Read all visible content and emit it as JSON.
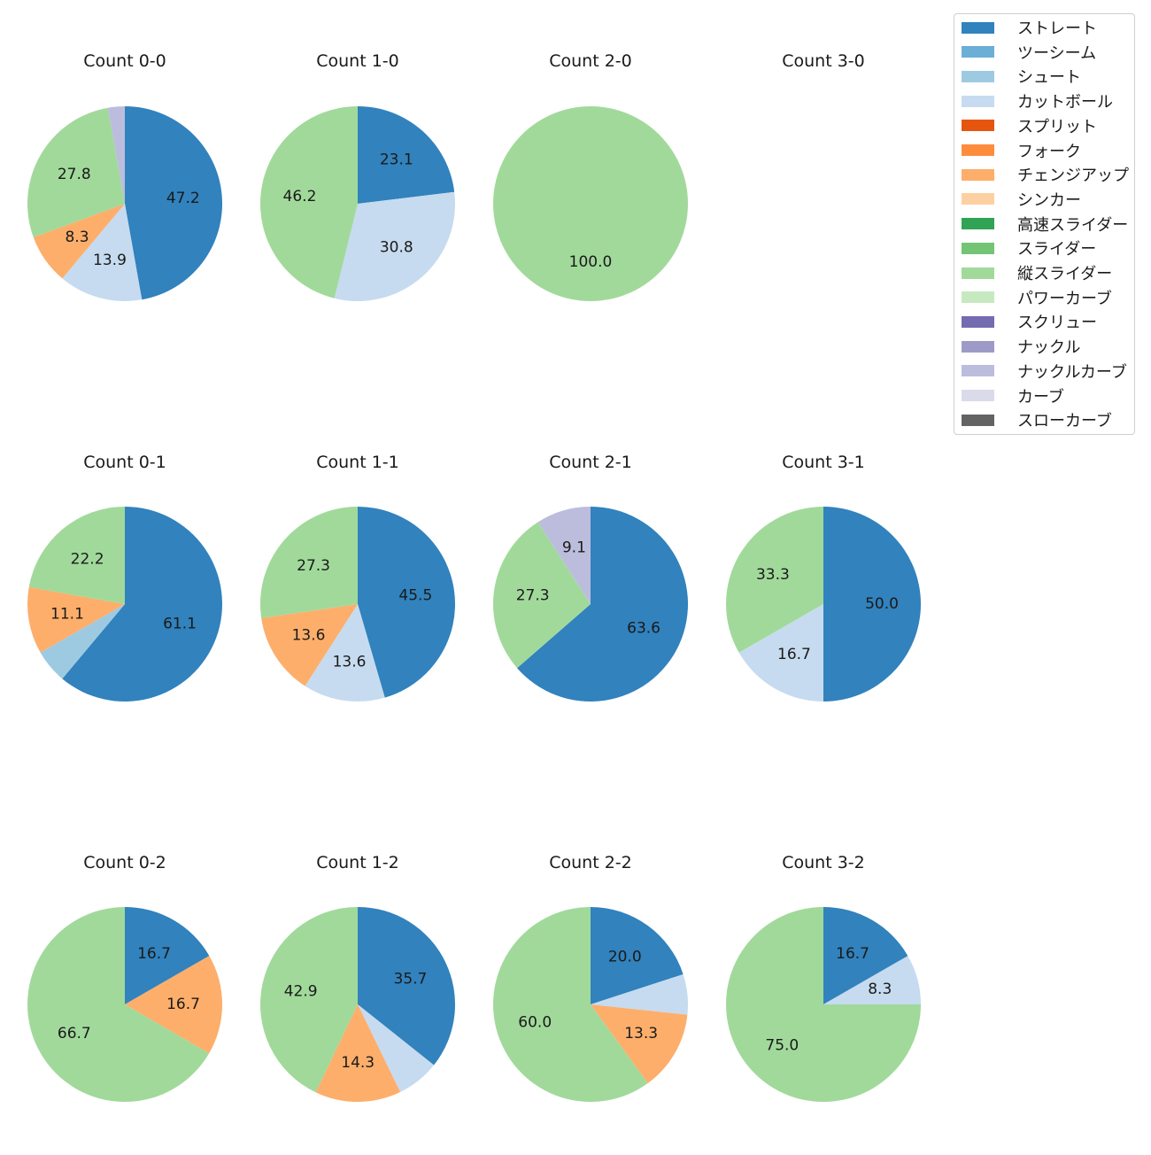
{
  "chart_data": {
    "type": "pie",
    "legend_position": "top-right",
    "pitch_types": [
      {
        "name": "ストレート",
        "color": "#3182bd"
      },
      {
        "name": "ツーシーム",
        "color": "#6baed6"
      },
      {
        "name": "シュート",
        "color": "#9ecae1"
      },
      {
        "name": "カットボール",
        "color": "#c6dbef"
      },
      {
        "name": "スプリット",
        "color": "#e6550d"
      },
      {
        "name": "フォーク",
        "color": "#fd8d3c"
      },
      {
        "name": "チェンジアップ",
        "color": "#fdae6b"
      },
      {
        "name": "シンカー",
        "color": "#fdd0a2"
      },
      {
        "name": "高速スライダー",
        "color": "#31a354"
      },
      {
        "name": "スライダー",
        "color": "#74c476"
      },
      {
        "name": "縦スライダー",
        "color": "#a1d99b"
      },
      {
        "name": "パワーカーブ",
        "color": "#c7e9c0"
      },
      {
        "name": "スクリュー",
        "color": "#756bb1"
      },
      {
        "name": "ナックル",
        "color": "#9e9ac8"
      },
      {
        "name": "ナックルカーブ",
        "color": "#bcbddc"
      },
      {
        "name": "カーブ",
        "color": "#dadaeb"
      },
      {
        "name": "スローカーブ",
        "color": "#636363"
      }
    ],
    "panels": [
      {
        "title": "Count 0-0",
        "slices": [
          {
            "type": "ストレート",
            "value": 47.2,
            "label": "47.2"
          },
          {
            "type": "カットボール",
            "value": 13.9,
            "label": "13.9"
          },
          {
            "type": "チェンジアップ",
            "value": 8.3,
            "label": "8.3"
          },
          {
            "type": "縦スライダー",
            "value": 27.8,
            "label": "27.8"
          },
          {
            "type": "ナックルカーブ",
            "value": 2.8,
            "label": ""
          }
        ]
      },
      {
        "title": "Count 1-0",
        "slices": [
          {
            "type": "ストレート",
            "value": 23.1,
            "label": "23.1"
          },
          {
            "type": "カットボール",
            "value": 30.8,
            "label": "30.8"
          },
          {
            "type": "縦スライダー",
            "value": 46.2,
            "label": "46.2"
          }
        ]
      },
      {
        "title": "Count 2-0",
        "slices": [
          {
            "type": "縦スライダー",
            "value": 100.0,
            "label": "100.0"
          }
        ]
      },
      {
        "title": "Count 3-0",
        "slices": []
      },
      {
        "title": "Count 0-1",
        "slices": [
          {
            "type": "ストレート",
            "value": 61.1,
            "label": "61.1"
          },
          {
            "type": "シュート",
            "value": 5.6,
            "label": ""
          },
          {
            "type": "チェンジアップ",
            "value": 11.1,
            "label": "11.1"
          },
          {
            "type": "縦スライダー",
            "value": 22.2,
            "label": "22.2"
          }
        ]
      },
      {
        "title": "Count 1-1",
        "slices": [
          {
            "type": "ストレート",
            "value": 45.5,
            "label": "45.5"
          },
          {
            "type": "カットボール",
            "value": 13.6,
            "label": "13.6"
          },
          {
            "type": "チェンジアップ",
            "value": 13.6,
            "label": "13.6"
          },
          {
            "type": "縦スライダー",
            "value": 27.3,
            "label": "27.3"
          }
        ]
      },
      {
        "title": "Count 2-1",
        "slices": [
          {
            "type": "ストレート",
            "value": 63.6,
            "label": "63.6"
          },
          {
            "type": "縦スライダー",
            "value": 27.3,
            "label": "27.3"
          },
          {
            "type": "ナックルカーブ",
            "value": 9.1,
            "label": "9.1"
          }
        ]
      },
      {
        "title": "Count 3-1",
        "slices": [
          {
            "type": "ストレート",
            "value": 50.0,
            "label": "50.0"
          },
          {
            "type": "カットボール",
            "value": 16.7,
            "label": "16.7"
          },
          {
            "type": "縦スライダー",
            "value": 33.3,
            "label": "33.3"
          }
        ]
      },
      {
        "title": "Count 0-2",
        "slices": [
          {
            "type": "ストレート",
            "value": 16.7,
            "label": "16.7"
          },
          {
            "type": "チェンジアップ",
            "value": 16.7,
            "label": "16.7"
          },
          {
            "type": "縦スライダー",
            "value": 66.7,
            "label": "66.7"
          }
        ]
      },
      {
        "title": "Count 1-2",
        "slices": [
          {
            "type": "ストレート",
            "value": 35.7,
            "label": "35.7"
          },
          {
            "type": "カットボール",
            "value": 7.1,
            "label": ""
          },
          {
            "type": "チェンジアップ",
            "value": 14.3,
            "label": "14.3"
          },
          {
            "type": "縦スライダー",
            "value": 42.9,
            "label": "42.9"
          }
        ]
      },
      {
        "title": "Count 2-2",
        "slices": [
          {
            "type": "ストレート",
            "value": 20.0,
            "label": "20.0"
          },
          {
            "type": "カットボール",
            "value": 6.7,
            "label": ""
          },
          {
            "type": "チェンジアップ",
            "value": 13.3,
            "label": "13.3"
          },
          {
            "type": "縦スライダー",
            "value": 60.0,
            "label": "60.0"
          }
        ]
      },
      {
        "title": "Count 3-2",
        "slices": [
          {
            "type": "ストレート",
            "value": 16.7,
            "label": "16.7"
          },
          {
            "type": "カットボール",
            "value": 8.3,
            "label": "8.3"
          },
          {
            "type": "縦スライダー",
            "value": 75.0,
            "label": "75.0"
          }
        ]
      }
    ]
  }
}
